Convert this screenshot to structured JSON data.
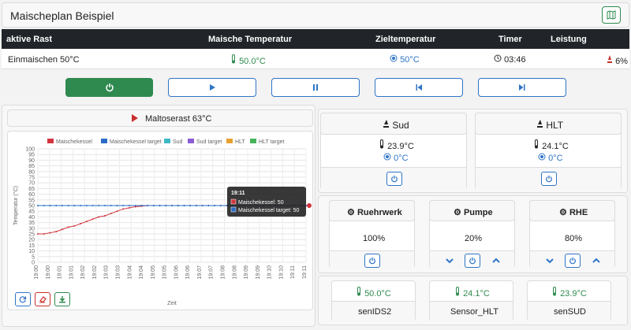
{
  "title": "Maischeplan Beispiel",
  "icons": {
    "map": "map-icon",
    "power": "power-icon",
    "play": "play-icon",
    "pause": "pause-icon",
    "prev": "skip-back-icon",
    "next": "skip-forward-icon"
  },
  "colors": {
    "green": "#2f8a4f",
    "blue": "#2f74c6",
    "dark": "#212529",
    "red": "#c9302c"
  },
  "table": {
    "headers": [
      "aktive Rast",
      "Maische Temperatur",
      "Zieltemperatur",
      "Timer",
      "Leistung"
    ],
    "row": {
      "rast": "Einmaischen 50°C",
      "temp": "50.0°C",
      "target": "50°C",
      "timer": "03:46",
      "power": "6%"
    }
  },
  "next_step": "Maltoserast 63°C",
  "chart_controls": [
    "refresh",
    "clear",
    "download"
  ],
  "chart_data": {
    "type": "line",
    "legend": [
      "Maischekessel",
      "Maischekessel target",
      "Sud",
      "Sud target",
      "HLT",
      "HLT target"
    ],
    "legend_colors": [
      "#d2343e",
      "#2a6cc4",
      "#3fb8c4",
      "#8a5cd6",
      "#e8a030",
      "#46b35a"
    ],
    "ylabel": "Temperatur (°C)",
    "xlabel": "Zeit",
    "ylim": [
      0,
      100
    ],
    "yticks": [
      0,
      5,
      10,
      15,
      20,
      25,
      30,
      35,
      40,
      45,
      50,
      55,
      60,
      65,
      70,
      75,
      80,
      85,
      90,
      95,
      100
    ],
    "xticks": [
      "19:00",
      "19:00",
      "19:01",
      "19:01",
      "19:02",
      "19:02",
      "19:03",
      "19:03",
      "19:04",
      "19:04",
      "19:05",
      "19:05",
      "19:06",
      "19:06",
      "19:07",
      "19:07",
      "19:08",
      "19:08",
      "19:09",
      "19:09",
      "19:10",
      "19:10",
      "19:11",
      "19:11"
    ],
    "series": [
      {
        "name": "Maischekessel",
        "values": [
          25,
          25,
          26,
          27,
          29,
          31,
          32,
          34,
          36,
          38,
          40,
          41,
          43,
          45,
          47,
          48,
          49,
          49.5,
          50,
          50,
          50,
          50,
          50,
          50,
          50,
          50,
          50,
          50,
          50,
          50,
          50,
          50,
          50,
          50,
          50,
          50,
          50,
          50,
          50,
          50,
          50,
          50,
          50,
          50,
          50
        ]
      },
      {
        "name": "Maischekessel target",
        "values": [
          50,
          50,
          50,
          50,
          50,
          50,
          50,
          50,
          50,
          50,
          50,
          50,
          50,
          50,
          50,
          50,
          50,
          50,
          50,
          50,
          50,
          50,
          50,
          50,
          50,
          50,
          50,
          50,
          50,
          50,
          50,
          50,
          50,
          50,
          50,
          50,
          50,
          50,
          50,
          50,
          50,
          50,
          50,
          50,
          50
        ]
      }
    ],
    "tooltip": {
      "time": "19:11",
      "lines": [
        "Maischekessel: 50",
        "Maischekessel target: 50"
      ]
    }
  },
  "kessel": [
    {
      "name": "Sud",
      "temp": "23.9°C",
      "target": "0°C"
    },
    {
      "name": "HLT",
      "temp": "24.1°C",
      "target": "0°C"
    }
  ],
  "actors": [
    {
      "name": "Ruehrwerk",
      "value": "100%"
    },
    {
      "name": "Pumpe",
      "value": "20%"
    },
    {
      "name": "RHE",
      "value": "80%"
    }
  ],
  "sensors": [
    {
      "value": "50.0°C",
      "name": "senIDS2"
    },
    {
      "value": "24.1°C",
      "name": "Sensor_HLT"
    },
    {
      "value": "23.9°C",
      "name": "senSUD"
    }
  ]
}
